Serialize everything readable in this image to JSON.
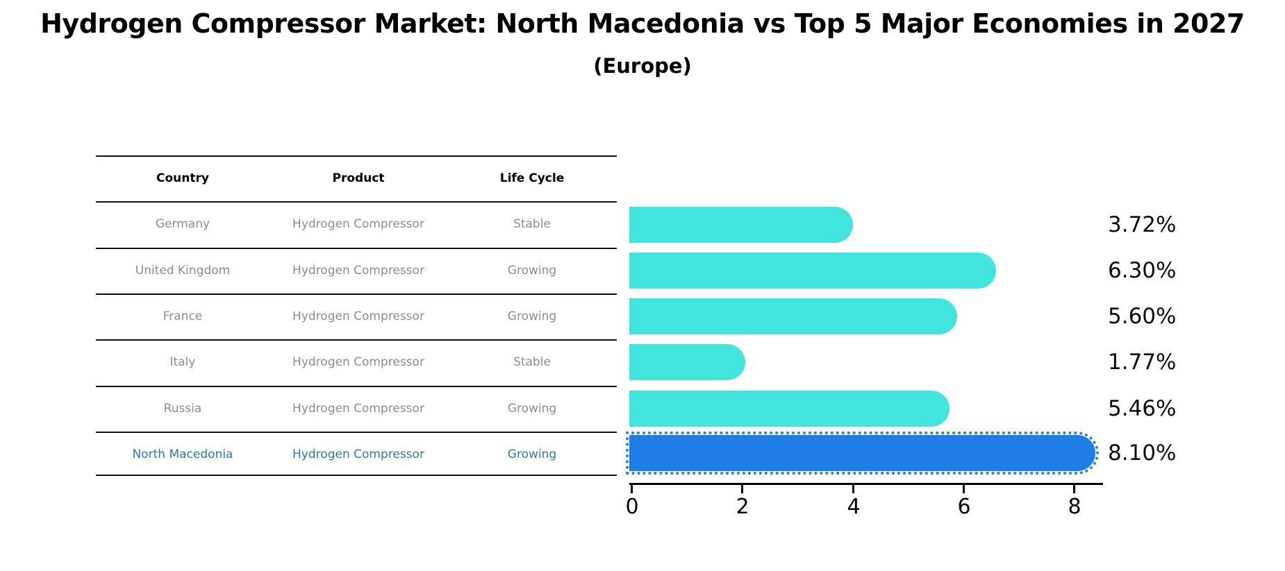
{
  "title": "Hydrogen Compressor Market: North Macedonia vs Top 5 Major Economies in 2027",
  "subtitle": "(Europe)",
  "table": {
    "headers": [
      "Country",
      "Product",
      "Life Cycle"
    ],
    "rows": [
      {
        "country": "Germany",
        "product": "Hydrogen Compressor",
        "life_cycle": "Stable",
        "highlight": false
      },
      {
        "country": "United Kingdom",
        "product": "Hydrogen Compressor",
        "life_cycle": "Growing",
        "highlight": false
      },
      {
        "country": "France",
        "product": "Hydrogen Compressor",
        "life_cycle": "Growing",
        "highlight": false
      },
      {
        "country": "Italy",
        "product": "Hydrogen Compressor",
        "life_cycle": "Stable",
        "highlight": false
      },
      {
        "country": "Russia",
        "product": "Hydrogen Compressor",
        "life_cycle": "Growing",
        "highlight": false
      },
      {
        "country": "North Macedonia",
        "product": "Hydrogen Compressor",
        "life_cycle": "Growing",
        "highlight": true
      }
    ]
  },
  "chart_data": {
    "type": "bar",
    "orientation": "horizontal",
    "title": "Hydrogen Compressor Market: North Macedonia vs Top 5 Major Economies in 2027",
    "subtitle": "(Europe)",
    "categories": [
      "Germany",
      "United Kingdom",
      "France",
      "Italy",
      "Russia",
      "North Macedonia"
    ],
    "values": [
      3.72,
      6.3,
      5.6,
      1.77,
      5.46,
      8.1
    ],
    "value_labels": [
      "3.72%",
      "6.30%",
      "5.60%",
      "1.77%",
      "5.46%",
      "8.10%"
    ],
    "unit": "%",
    "xticks": [
      0,
      2,
      4,
      6,
      8
    ],
    "xlim": [
      0,
      8.55
    ],
    "grid": false,
    "legend": "none",
    "bar_color": "#41e5de",
    "highlight_color": "#1e7de6",
    "highlight_text_color": "#2878b8",
    "highlight_index": 5
  }
}
